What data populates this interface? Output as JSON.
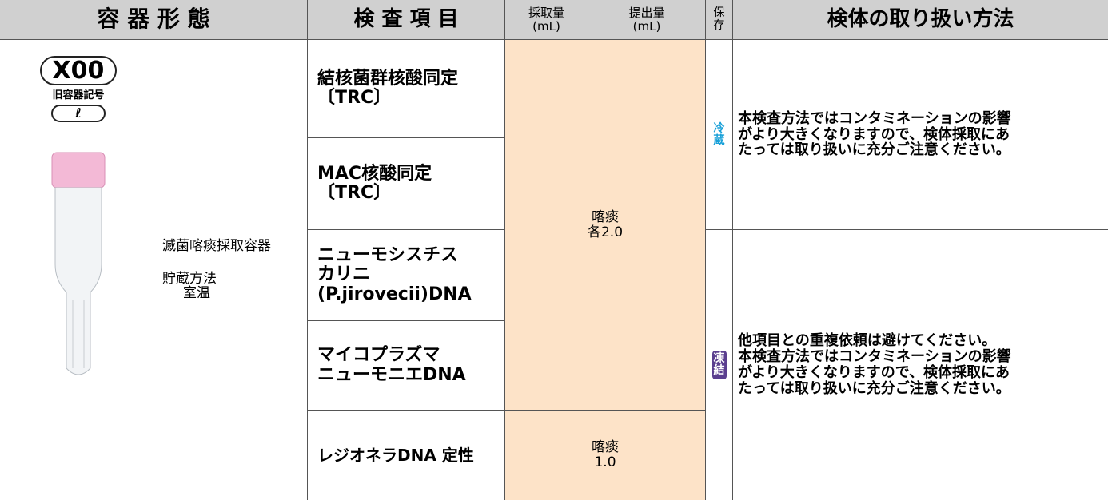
{
  "header": {
    "container": "容 器 形 態",
    "test": "検 査 項 目",
    "collect": "採取量\n(mL)",
    "submit": "提出量\n(mL)",
    "storage": "保\n存",
    "handling": "検体の取り扱い方法"
  },
  "container": {
    "code": "X00",
    "old_label": "旧容器記号",
    "old_code": "ℓ",
    "name": "滅菌喀痰採取容器",
    "storage_label": "貯蔵方法",
    "storage": "室温"
  },
  "tests": [
    "結核菌群核酸同定\n〔TRC〕",
    "MAC核酸同定\n〔TRC〕",
    "ニューモシスチス\nカリニ\n(P.jirovecii)DNA",
    "マイコプラズマ\nニューモニエDNA",
    "レジオネラDNA 定性"
  ],
  "amounts": [
    {
      "specimen": "喀痰",
      "volume": "各2.0"
    },
    {
      "specimen": "喀痰",
      "volume": "1.0"
    }
  ],
  "storage": [
    "冷\n蔵",
    "凍\n結"
  ],
  "handling": [
    "本検査方法ではコンタミネーションの影響\nがより大きくなりますので、検体採取にあ\nたっては取り扱いに充分ご注意ください。",
    "他項目との重複依頼は避けてください。\n本検査方法ではコンタミネーションの影響\nがより大きくなりますので、検体採取にあ\nたっては取り扱いに充分ご注意ください。"
  ]
}
